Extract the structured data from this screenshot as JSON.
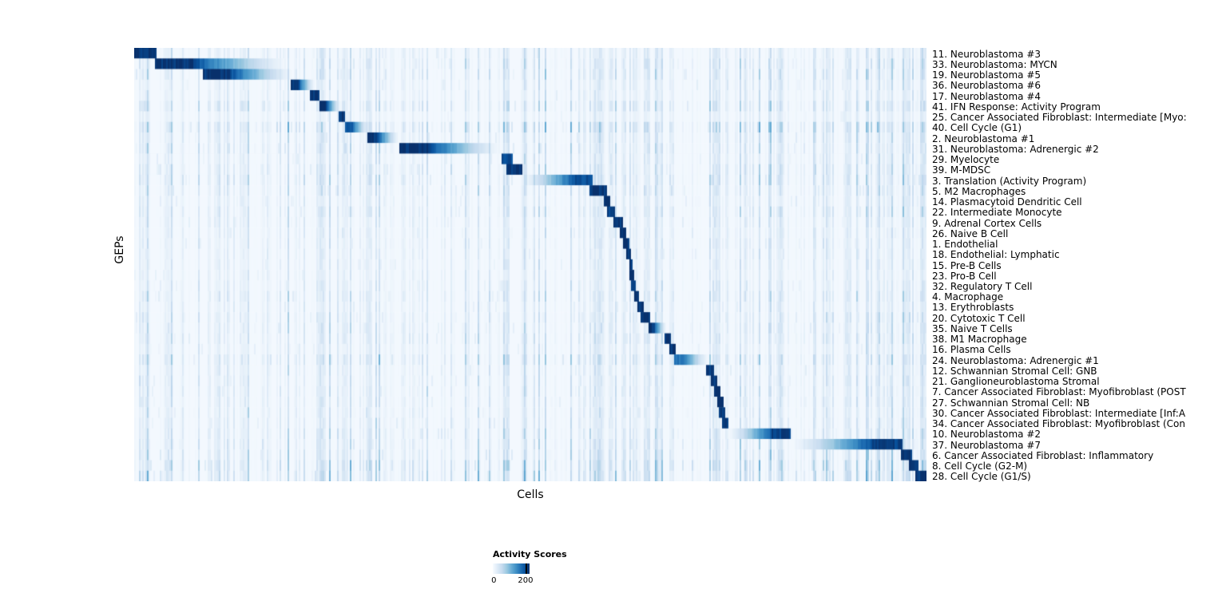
{
  "chart_data": {
    "type": "heatmap",
    "title": "",
    "xlabel": "Cells",
    "ylabel": "GEPs",
    "grid": false,
    "colormap": {
      "name": "Blues",
      "stops": [
        "#f7fbff",
        "#deebf7",
        "#c6dbef",
        "#9ecae1",
        "#6baed6",
        "#4292c6",
        "#2171b5",
        "#08519c",
        "#08306b"
      ]
    },
    "legend": {
      "title": "Activity Scores",
      "min": 0,
      "max": 200,
      "position": "bottom",
      "tick_fraction": 0.89
    },
    "rows": [
      {
        "label": "11. Neuroblastoma #3",
        "block": [
          0.0,
          0.028
        ],
        "intensity": 1.0,
        "fade": "none",
        "noise": 0.25
      },
      {
        "label": "33. Neuroblastoma: MYCN",
        "block": [
          0.028,
          0.2
        ],
        "intensity": 1.0,
        "fade": "right",
        "noise": 0.3
      },
      {
        "label": "19. Neuroblastoma #5",
        "block": [
          0.088,
          0.205
        ],
        "intensity": 1.0,
        "fade": "right",
        "noise": 0.3
      },
      {
        "label": "36. Neuroblastoma #6",
        "block": [
          0.198,
          0.229
        ],
        "intensity": 1.0,
        "fade": "right",
        "noise": 0.22
      },
      {
        "label": "17. Neuroblastoma #4",
        "block": [
          0.222,
          0.234
        ],
        "intensity": 1.0,
        "fade": "none",
        "noise": 0.22
      },
      {
        "label": "41. IFN Response: Activity Program",
        "block": [
          0.234,
          0.262
        ],
        "intensity": 1.0,
        "fade": "right",
        "noise": 0.35
      },
      {
        "label": "25. Cancer Associated Fibroblast: Intermediate [Myo:",
        "block": [
          0.259,
          0.267
        ],
        "intensity": 1.0,
        "fade": "none",
        "noise": 0.18
      },
      {
        "label": "40. Cell Cycle (G1)",
        "block": [
          0.267,
          0.298
        ],
        "intensity": 0.85,
        "fade": "right",
        "noise": 0.45
      },
      {
        "label": "2. Neuroblastoma #1",
        "block": [
          0.296,
          0.336
        ],
        "intensity": 1.0,
        "fade": "right",
        "noise": 0.3
      },
      {
        "label": "31. Neuroblastoma: Adrenergic #2",
        "block": [
          0.336,
          0.468
        ],
        "intensity": 1.0,
        "fade": "right",
        "noise": 0.3
      },
      {
        "label": "29. Myelocyte",
        "block": [
          0.465,
          0.478
        ],
        "intensity": 0.9,
        "fade": "none",
        "noise": 0.25
      },
      {
        "label": "39. M-MDSC",
        "block": [
          0.471,
          0.49
        ],
        "intensity": 1.0,
        "fade": "none",
        "noise": 0.3
      },
      {
        "label": "3. Translation (Activity Program)",
        "block": [
          0.487,
          0.578
        ],
        "intensity": 0.9,
        "fade": "left",
        "noise": 0.35
      },
      {
        "label": "5. M2 Macrophages",
        "block": [
          0.575,
          0.596
        ],
        "intensity": 1.0,
        "fade": "none",
        "noise": 0.3
      },
      {
        "label": "14. Plasmacytoid Dendritic Cell",
        "block": [
          0.594,
          0.601
        ],
        "intensity": 1.0,
        "fade": "none",
        "noise": 0.22
      },
      {
        "label": "22. Intermediate Monocyte",
        "block": [
          0.598,
          0.606
        ],
        "intensity": 0.95,
        "fade": "none",
        "noise": 0.28
      },
      {
        "label": "9. Adrenal Cortex Cells",
        "block": [
          0.605,
          0.616
        ],
        "intensity": 1.0,
        "fade": "none",
        "noise": 0.22
      },
      {
        "label": "26. Naive B Cell",
        "block": [
          0.613,
          0.62
        ],
        "intensity": 1.0,
        "fade": "none",
        "noise": 0.22
      },
      {
        "label": "1. Endothelial",
        "block": [
          0.618,
          0.624
        ],
        "intensity": 1.0,
        "fade": "none",
        "noise": 0.22
      },
      {
        "label": "18. Endothelial: Lymphatic",
        "block": [
          0.622,
          0.627
        ],
        "intensity": 1.0,
        "fade": "none",
        "noise": 0.2
      },
      {
        "label": "15. Pre-B Cells",
        "block": [
          0.625,
          0.629
        ],
        "intensity": 1.0,
        "fade": "none",
        "noise": 0.2
      },
      {
        "label": "23. Pro-B Cell",
        "block": [
          0.627,
          0.631
        ],
        "intensity": 1.0,
        "fade": "none",
        "noise": 0.2
      },
      {
        "label": "32. Regulatory T Cell",
        "block": [
          0.629,
          0.634
        ],
        "intensity": 1.0,
        "fade": "none",
        "noise": 0.22
      },
      {
        "label": "4. Macrophage",
        "block": [
          0.632,
          0.638
        ],
        "intensity": 1.0,
        "fade": "none",
        "noise": 0.28
      },
      {
        "label": "13. Erythroblasts",
        "block": [
          0.636,
          0.643
        ],
        "intensity": 1.0,
        "fade": "none",
        "noise": 0.22
      },
      {
        "label": "20. Cytotoxic T Cell",
        "block": [
          0.641,
          0.652
        ],
        "intensity": 1.0,
        "fade": "none",
        "noise": 0.28
      },
      {
        "label": "35. Naive T Cells",
        "block": [
          0.65,
          0.673
        ],
        "intensity": 1.0,
        "fade": "right",
        "noise": 0.28
      },
      {
        "label": "38. M1 Macrophage",
        "block": [
          0.67,
          0.678
        ],
        "intensity": 1.0,
        "fade": "none",
        "noise": 0.28
      },
      {
        "label": "16. Plasma Cells",
        "block": [
          0.676,
          0.684
        ],
        "intensity": 1.0,
        "fade": "none",
        "noise": 0.22
      },
      {
        "label": "24. Neuroblastoma: Adrenergic #1",
        "block": [
          0.682,
          0.727
        ],
        "intensity": 0.75,
        "fade": "right",
        "noise": 0.35
      },
      {
        "label": "12. Schwannian Stromal Cell: GNB",
        "block": [
          0.722,
          0.732
        ],
        "intensity": 1.0,
        "fade": "none",
        "noise": 0.25
      },
      {
        "label": "21. Ganglioneuroblastoma Stromal",
        "block": [
          0.728,
          0.736
        ],
        "intensity": 1.0,
        "fade": "none",
        "noise": 0.25
      },
      {
        "label": "7. Cancer Associated Fibroblast: Myofibroblast (POST",
        "block": [
          0.732,
          0.74
        ],
        "intensity": 1.0,
        "fade": "none",
        "noise": 0.25
      },
      {
        "label": "27. Schwannian Stromal Cell: NB",
        "block": [
          0.736,
          0.743
        ],
        "intensity": 1.0,
        "fade": "none",
        "noise": 0.25
      },
      {
        "label": "30. Cancer Associated Fibroblast: Intermediate [Inf:A",
        "block": [
          0.739,
          0.746
        ],
        "intensity": 1.0,
        "fade": "none",
        "noise": 0.25
      },
      {
        "label": "34. Cancer Associated Fibroblast: Myofibroblast (Con",
        "block": [
          0.742,
          0.749
        ],
        "intensity": 1.0,
        "fade": "none",
        "noise": 0.25
      },
      {
        "label": "10. Neuroblastoma #2",
        "block": [
          0.746,
          0.829
        ],
        "intensity": 0.95,
        "fade": "left",
        "noise": 0.3
      },
      {
        "label": "37. Neuroblastoma #7",
        "block": [
          0.826,
          0.97
        ],
        "intensity": 0.95,
        "fade": "left",
        "noise": 0.3
      },
      {
        "label": "6. Cancer Associated Fibroblast: Inflammatory",
        "block": [
          0.968,
          0.981
        ],
        "intensity": 1.0,
        "fade": "none",
        "noise": 0.35
      },
      {
        "label": "8. Cell Cycle (G2-M)",
        "block": [
          0.978,
          0.989
        ],
        "intensity": 1.0,
        "fade": "none",
        "noise": 0.45
      },
      {
        "label": "28. Cell Cycle (G1/S)",
        "block": [
          0.986,
          1.0
        ],
        "intensity": 1.0,
        "fade": "none",
        "noise": 0.45
      }
    ],
    "vertical_bands": [
      {
        "x": 0.042,
        "w": 0.006,
        "s": 0.35
      },
      {
        "x": 0.105,
        "w": 0.005,
        "s": 0.3
      },
      {
        "x": 0.14,
        "w": 0.004,
        "s": 0.25
      },
      {
        "x": 0.237,
        "w": 0.007,
        "s": 0.45
      },
      {
        "x": 0.268,
        "w": 0.004,
        "s": 0.3
      },
      {
        "x": 0.297,
        "w": 0.006,
        "s": 0.4
      },
      {
        "x": 0.34,
        "w": 0.004,
        "s": 0.3
      },
      {
        "x": 0.47,
        "w": 0.007,
        "s": 0.45
      },
      {
        "x": 0.492,
        "w": 0.004,
        "s": 0.35
      },
      {
        "x": 0.585,
        "w": 0.008,
        "s": 0.5
      },
      {
        "x": 0.602,
        "w": 0.005,
        "s": 0.4
      },
      {
        "x": 0.617,
        "w": 0.004,
        "s": 0.35
      },
      {
        "x": 0.632,
        "w": 0.004,
        "s": 0.35
      },
      {
        "x": 0.647,
        "w": 0.005,
        "s": 0.4
      },
      {
        "x": 0.663,
        "w": 0.004,
        "s": 0.3
      },
      {
        "x": 0.678,
        "w": 0.004,
        "s": 0.3
      },
      {
        "x": 0.735,
        "w": 0.007,
        "s": 0.45
      },
      {
        "x": 0.748,
        "w": 0.004,
        "s": 0.3
      },
      {
        "x": 0.9,
        "w": 0.005,
        "s": 0.35
      },
      {
        "x": 0.955,
        "w": 0.004,
        "s": 0.3
      },
      {
        "x": 0.975,
        "w": 0.006,
        "s": 0.45
      },
      {
        "x": 0.995,
        "w": 0.004,
        "s": 0.8
      }
    ]
  }
}
